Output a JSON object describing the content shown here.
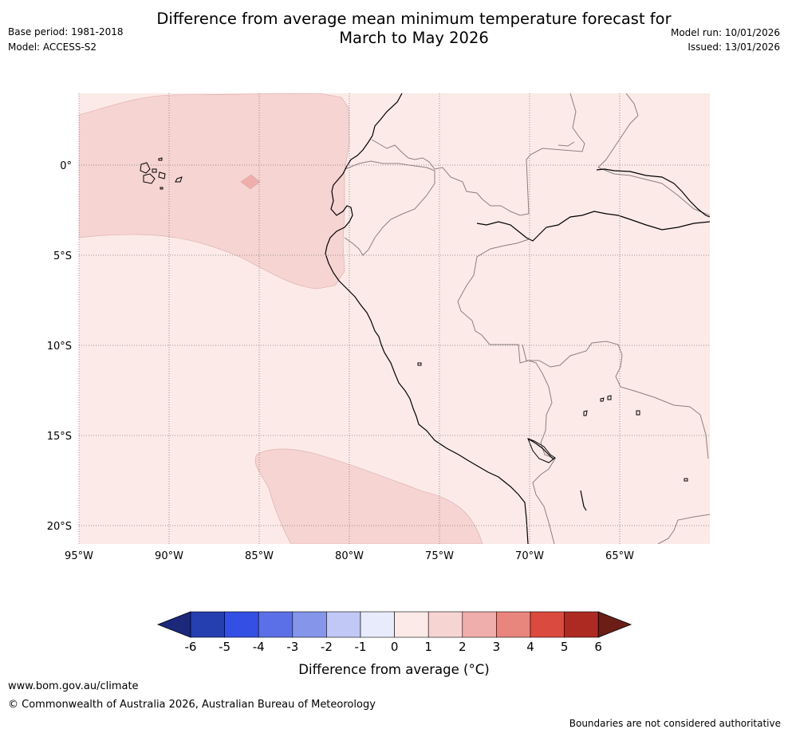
{
  "header": {
    "title_line1": "Difference from average mean minimum temperature forecast for",
    "title_line2": "March to May 2026",
    "base_period": "Base period: 1981-2018",
    "model": "Model: ACCESS-S2",
    "model_run": "Model run: 10/01/2026",
    "issued": "Issued: 13/01/2026"
  },
  "map": {
    "latitude_labels": [
      "0°",
      "5°S",
      "10°S",
      "15°S",
      "20°S"
    ],
    "longitude_labels": [
      "95°W",
      "90°W",
      "85°W",
      "80°W",
      "75°W",
      "70°W",
      "65°W"
    ],
    "colors": {
      "band_0_1": "#fbeae8",
      "band_1_2": "#f6d4d2",
      "band_2_3": "#efaeab",
      "ocean_outline": "#d9aaa8",
      "coastline": "#000000",
      "border": "#8c7f7f",
      "gridline": "#7a7a7a"
    }
  },
  "colorbar": {
    "colors": [
      "#1c2879",
      "#253eb0",
      "#3450e4",
      "#5b70e6",
      "#8495ea",
      "#c1c8f6",
      "#e8ebfc",
      "#fbeae8",
      "#f6d4d2",
      "#efaeab",
      "#e8857d",
      "#db4a3e",
      "#ad2a22",
      "#6b1d16"
    ],
    "tick_labels": [
      "-6",
      "-5",
      "-4",
      "-3",
      "-2",
      "-1",
      "0",
      "1",
      "2",
      "3",
      "4",
      "5",
      "6"
    ],
    "label": "Difference from average (°C)"
  },
  "footer": {
    "url": "www.bom.gov.au/climate",
    "copyright": "© Commonwealth of Australia 2026, Australian Bureau of Meteorology",
    "disclaimer": "Boundaries are not considered authoritative"
  }
}
